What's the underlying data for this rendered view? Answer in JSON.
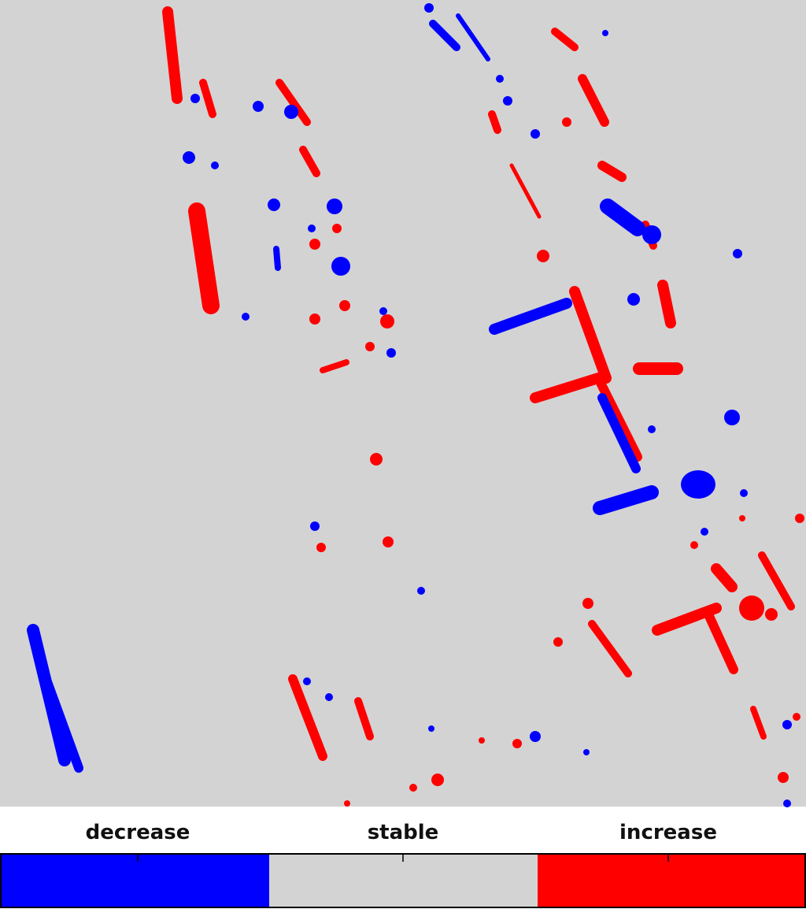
{
  "legend": {
    "labels": [
      "decrease",
      "stable",
      "increase"
    ]
  }
}
